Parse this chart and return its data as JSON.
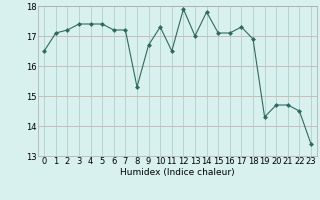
{
  "x": [
    0,
    1,
    2,
    3,
    4,
    5,
    6,
    7,
    8,
    9,
    10,
    11,
    12,
    13,
    14,
    15,
    16,
    17,
    18,
    19,
    20,
    21,
    22,
    23
  ],
  "y": [
    16.5,
    17.1,
    17.2,
    17.4,
    17.4,
    17.4,
    17.2,
    17.2,
    15.3,
    16.7,
    17.3,
    16.5,
    17.9,
    17.0,
    17.8,
    17.1,
    17.1,
    17.3,
    16.9,
    14.3,
    14.7,
    14.7,
    14.5,
    13.4
  ],
  "line_color": "#2e6b5e",
  "marker": "D",
  "marker_size": 2,
  "bg_color": "#d8f0ee",
  "grid_color_h": "#c8a8a8",
  "grid_color_v": "#a8c8c4",
  "xlabel": "Humidex (Indice chaleur)",
  "ylim": [
    13,
    18
  ],
  "xlim": [
    -0.5,
    23.5
  ],
  "yticks": [
    13,
    14,
    15,
    16,
    17,
    18
  ],
  "xticks": [
    0,
    1,
    2,
    3,
    4,
    5,
    6,
    7,
    8,
    9,
    10,
    11,
    12,
    13,
    14,
    15,
    16,
    17,
    18,
    19,
    20,
    21,
    22,
    23
  ],
  "xlabel_fontsize": 6.5,
  "tick_fontsize": 6
}
